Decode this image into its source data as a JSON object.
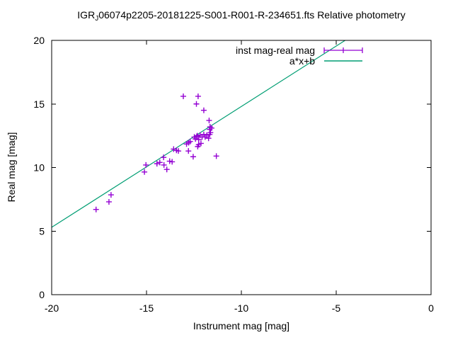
{
  "title": {
    "prefix": "IGR",
    "subscript": "J",
    "rest": "06074p2205-20181225-S001-R001-R-234651.fts Relative photometry"
  },
  "legend": {
    "position": "top-right-inside",
    "entries": [
      {
        "label": "inst mag-real mag",
        "type": "xerrorbar",
        "color": "#9400d3"
      },
      {
        "label": "a*x+b",
        "type": "line",
        "color": "#009e73"
      }
    ]
  },
  "colors": {
    "scatter": "#9400d3",
    "fit_line": "#009e73",
    "frame": "#000000",
    "text": "#000000",
    "background": "#ffffff"
  },
  "chart_data": {
    "type": "scatter",
    "title": "IGR_J06074p2205-20181225-S001-R001-R-234651.fts Relative photometry",
    "xlabel": "Instrument mag [mag]",
    "ylabel": "Real mag [mag]",
    "xlim": [
      -20,
      0
    ],
    "ylim": [
      0,
      20
    ],
    "x_ticks": [
      -20,
      -15,
      -10,
      -5,
      0
    ],
    "y_ticks": [
      0,
      5,
      10,
      15,
      20
    ],
    "grid": false,
    "tick_style": "inward-mirrored",
    "legend_position": "top-right-inside",
    "series": [
      {
        "name": "inst mag-real mag",
        "type": "scatter",
        "marker": "plus",
        "color": "#9400d3",
        "points": [
          [
            -17.66,
            6.7
          ],
          [
            -16.98,
            7.3
          ],
          [
            -16.87,
            7.85
          ],
          [
            -15.11,
            9.65
          ],
          [
            -15.03,
            10.2
          ],
          [
            -14.45,
            10.3
          ],
          [
            -14.3,
            10.4
          ],
          [
            -14.1,
            10.8
          ],
          [
            -14.08,
            10.2
          ],
          [
            -13.93,
            9.85
          ],
          [
            -13.78,
            10.5
          ],
          [
            -13.65,
            10.45
          ],
          [
            -13.57,
            11.45
          ],
          [
            -13.42,
            11.35
          ],
          [
            -13.32,
            11.3
          ],
          [
            -13.06,
            15.6
          ],
          [
            -12.89,
            11.85
          ],
          [
            -12.79,
            11.3
          ],
          [
            -12.78,
            11.95
          ],
          [
            -12.7,
            12.05
          ],
          [
            -12.54,
            10.85
          ],
          [
            -12.48,
            12.4
          ],
          [
            -12.42,
            12.25
          ],
          [
            -12.37,
            15.0
          ],
          [
            -12.35,
            12.45
          ],
          [
            -12.32,
            12.5
          ],
          [
            -12.3,
            11.65
          ],
          [
            -12.28,
            15.6
          ],
          [
            -12.25,
            12.2
          ],
          [
            -12.25,
            11.8
          ],
          [
            -12.17,
            12.55
          ],
          [
            -12.13,
            11.9
          ],
          [
            -12.07,
            12.4
          ],
          [
            -11.98,
            14.5
          ],
          [
            -11.98,
            12.6
          ],
          [
            -11.91,
            12.4
          ],
          [
            -11.82,
            12.55
          ],
          [
            -11.73,
            12.3
          ],
          [
            -11.7,
            13.7
          ],
          [
            -11.67,
            12.6
          ],
          [
            -11.67,
            13.0
          ],
          [
            -11.65,
            13.2
          ],
          [
            -11.63,
            12.75
          ],
          [
            -11.57,
            13.1
          ],
          [
            -11.32,
            10.9
          ]
        ]
      },
      {
        "name": "a*x+b",
        "type": "line",
        "color": "#009e73",
        "slope": 0.95,
        "intercept": 24.3,
        "endpoints": [
          [
            -20,
            5.3
          ],
          [
            -4.53,
            20
          ]
        ]
      }
    ]
  }
}
